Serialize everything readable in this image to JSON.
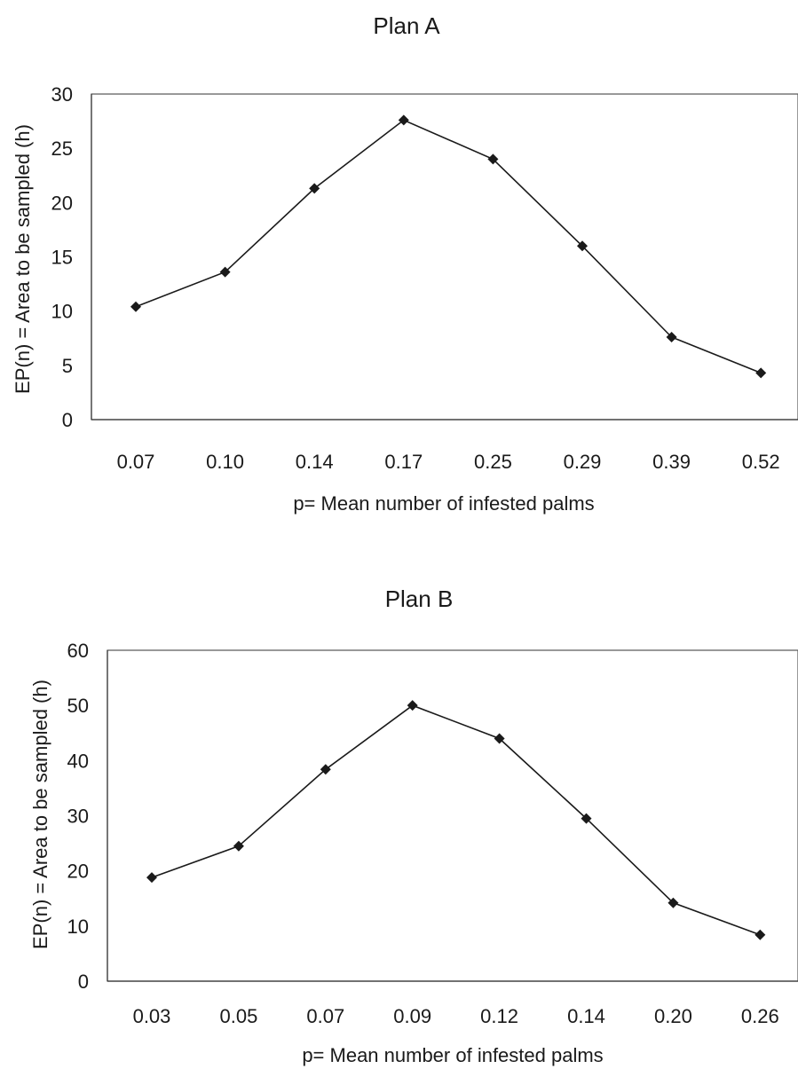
{
  "chart_data": [
    {
      "type": "line",
      "title": "Plan A",
      "xlabel": "p= Mean number of infested palms",
      "ylabel": "EP(n) = Area to be sampled (h)",
      "categories": [
        "0.07",
        "0.10",
        "0.14",
        "0.17",
        "0.25",
        "0.29",
        "0.39",
        "0.52"
      ],
      "series": [
        {
          "values": [
            10.4,
            13.6,
            21.3,
            27.6,
            24.0,
            16.0,
            7.6,
            4.3
          ]
        }
      ],
      "ylim": [
        0,
        30
      ],
      "yticks": [
        "0",
        "5",
        "10",
        "15",
        "20",
        "25",
        "30"
      ],
      "grid": false,
      "colors": {
        "line": "#1a1a1a",
        "marker": "#1a1a1a"
      },
      "marker": "diamond"
    },
    {
      "type": "line",
      "title": "Plan B",
      "xlabel": "p= Mean number of infested palms",
      "ylabel": "EP(n) = Area to be sampled (h)",
      "categories": [
        "0.03",
        "0.05",
        "0.07",
        "0.09",
        "0.12",
        "0.14",
        "0.20",
        "0.26"
      ],
      "series": [
        {
          "values": [
            18.8,
            24.5,
            38.4,
            50.0,
            44.0,
            29.5,
            14.2,
            8.4
          ]
        }
      ],
      "ylim": [
        0,
        60
      ],
      "yticks": [
        "0",
        "10",
        "20",
        "30",
        "40",
        "50",
        "60"
      ],
      "grid": false,
      "colors": {
        "line": "#1a1a1a",
        "marker": "#1a1a1a"
      },
      "marker": "diamond"
    }
  ]
}
